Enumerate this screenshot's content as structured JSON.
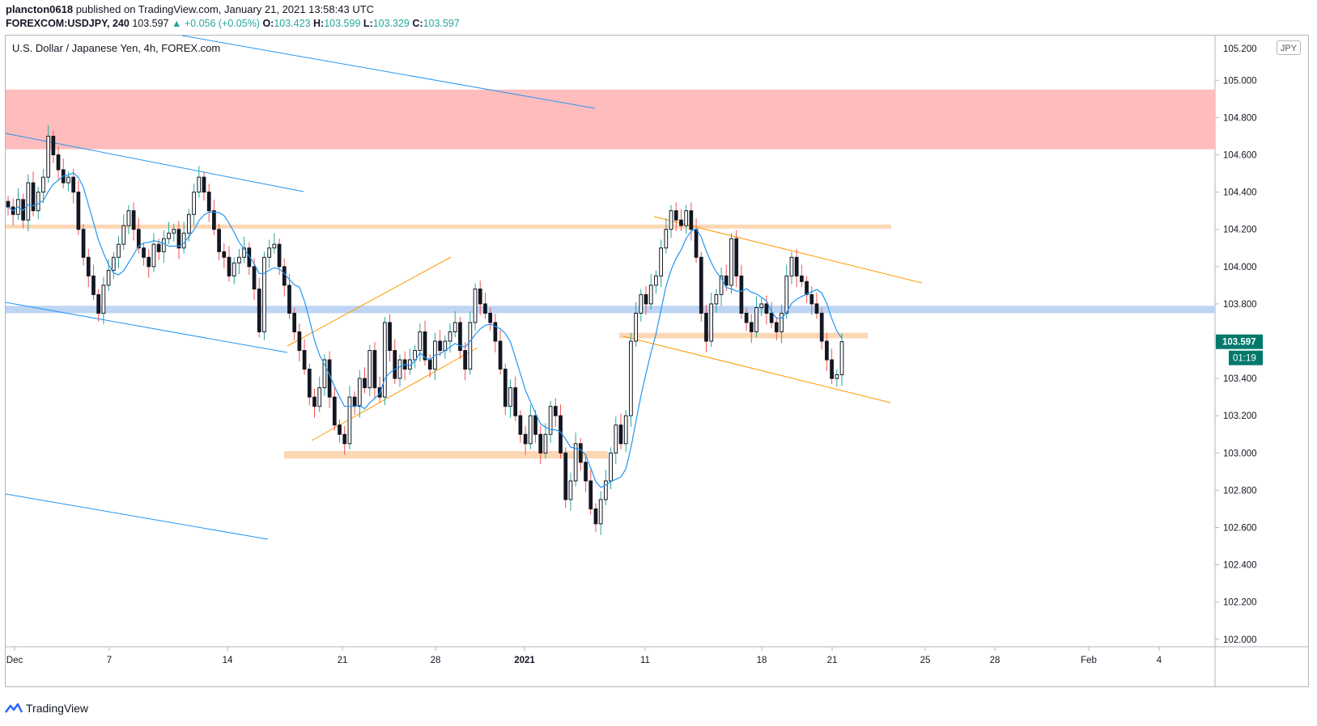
{
  "header": {
    "user": "plancton0618",
    "published_text": " published on TradingView.com, January 21, 2021 13:58:43 UTC",
    "symbol_interval": "FOREXCOM:USDJPY, 240",
    "price": "103.597",
    "change": "+0.056 (+0.05%)",
    "o_label": "O:",
    "o_value": "103.423",
    "h_label": "H:",
    "h_value": "103.599",
    "l_label": "L:",
    "l_value": "103.329",
    "c_label": "C:",
    "c_value": "103.597"
  },
  "chart_title": "U.S. Dollar / Japanese Yen, 4h, FOREX.com",
  "currency_badge": "JPY",
  "last_price_label": "103.597",
  "countdown_label": "01:19",
  "footer_brand": "TradingView",
  "colors": {
    "up": "#26a69a",
    "down": "#ef5350",
    "candle_body": "#131722",
    "ma_line": "#2196f3",
    "trend_blue": "#2196f3",
    "trend_orange": "#ff9800",
    "resistance_zone": "#ffb8b8",
    "support_zone_orange": "#fcd5b0",
    "zone_blue": "#bbd3f3",
    "price_badge": "#00796b"
  },
  "chart_data": {
    "type": "candlestick",
    "title": "U.S. Dollar / Japanese Yen, 4h, FOREX.com",
    "xlabel": "",
    "ylabel": "",
    "ylim": [
      101.96,
      105.24
    ],
    "y_ticks": [
      102.0,
      102.2,
      102.4,
      102.6,
      102.8,
      103.0,
      103.2,
      103.4,
      103.6,
      103.8,
      104.0,
      104.2,
      104.4,
      104.6,
      104.8,
      105.0
    ],
    "x_tick_labels": [
      "Dec",
      "7",
      "14",
      "21",
      "28",
      "2021",
      "11",
      "18",
      "21",
      "25",
      "28",
      "Feb",
      "4"
    ],
    "last_price": 103.597,
    "grid": false,
    "candles_approx": [
      104.32,
      104.28,
      104.36,
      104.25,
      104.45,
      104.3,
      104.4,
      104.48,
      104.7,
      104.6,
      104.52,
      104.45,
      104.48,
      104.4,
      104.2,
      104.05,
      103.95,
      103.85,
      103.75,
      103.9,
      103.98,
      104.05,
      104.12,
      104.22,
      104.3,
      104.2,
      104.1,
      104.05,
      104.0,
      104.12,
      104.08,
      104.15,
      104.18,
      104.2,
      104.1,
      104.18,
      104.28,
      104.4,
      104.48,
      104.4,
      104.3,
      104.2,
      104.08,
      104.05,
      103.95,
      104.02,
      104.05,
      104.1,
      104.0,
      103.88,
      103.65,
      104.05,
      104.1,
      104.12,
      104.0,
      103.9,
      103.75,
      103.65,
      103.55,
      103.45,
      103.3,
      103.25,
      103.35,
      103.5,
      103.3,
      103.15,
      103.1,
      103.05,
      103.3,
      103.25,
      103.4,
      103.35,
      103.55,
      103.35,
      103.3,
      103.7,
      103.55,
      103.4,
      103.5,
      103.45,
      103.5,
      103.55,
      103.65,
      103.5,
      103.45,
      103.6,
      103.55,
      103.6,
      103.65,
      103.7,
      103.55,
      103.45,
      103.7,
      103.88,
      103.8,
      103.75,
      103.7,
      103.6,
      103.45,
      103.25,
      103.35,
      103.2,
      103.1,
      103.05,
      103.2,
      103.1,
      103.0,
      103.1,
      103.25,
      103.2,
      103.0,
      102.75,
      102.85,
      103.05,
      102.95,
      102.85,
      102.7,
      102.62,
      102.75,
      102.85,
      103.0,
      103.15,
      103.05,
      103.2,
      103.6,
      103.75,
      103.85,
      103.8,
      103.9,
      103.95,
      104.1,
      104.2,
      104.3,
      104.25,
      104.22,
      104.3,
      104.2,
      104.05,
      103.75,
      103.6,
      103.8,
      103.85,
      103.95,
      103.9,
      104.15,
      103.95,
      103.75,
      103.7,
      103.65,
      103.78,
      103.8,
      103.75,
      103.7,
      103.65,
      103.75,
      103.95,
      104.05,
      103.95,
      103.92,
      103.85,
      103.8,
      103.75,
      103.6,
      103.5,
      103.4,
      103.42,
      103.597
    ],
    "moving_average": "approximate 20-period line shown in blue",
    "drawings": [
      {
        "kind": "zone",
        "color": "resistance_zone",
        "y_from": 104.63,
        "y_to": 104.95
      },
      {
        "kind": "zone",
        "color": "support_zone_orange",
        "y_from": 104.205,
        "y_to": 104.225
      },
      {
        "kind": "zone",
        "color": "zone_blue",
        "y_from": 103.75,
        "y_to": 103.79
      },
      {
        "kind": "zone",
        "color": "support_zone_orange",
        "y_from": 103.615,
        "y_to": 103.645
      },
      {
        "kind": "zone",
        "color": "support_zone_orange",
        "y_from": 102.97,
        "y_to": 103.01
      }
    ]
  }
}
